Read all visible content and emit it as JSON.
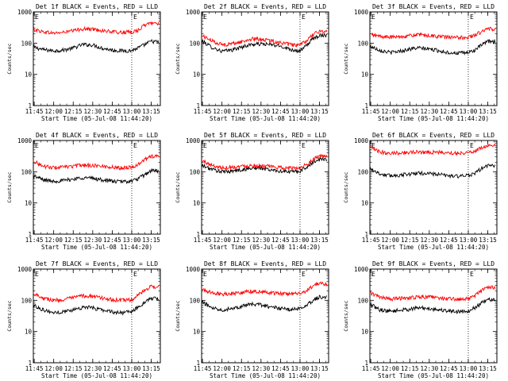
{
  "chart_data": [
    {
      "type": "line",
      "title": "Det 1f BLACK = Events, RED = LLD",
      "xlabel": "Start Time (05-Jul-08 11:44:20)",
      "ylabel": "Counts/sec",
      "x_ticks": [
        "11:45",
        "12:00",
        "12:15",
        "12:30",
        "12:45",
        "13:00",
        "13:15"
      ],
      "y_ticks": [
        "1",
        "10",
        "100",
        "1000"
      ],
      "y_scale": "log",
      "ylim": [
        1,
        1000
      ],
      "x_range": [
        "11:44:20",
        "13:22"
      ],
      "markers": [
        {
          "label": "E",
          "time": "11:44:20"
        },
        {
          "label": "E",
          "time": "13:00"
        }
      ],
      "series": [
        {
          "name": "BLACK = Events",
          "color": "#000000",
          "time": [
            "11:44:20",
            "11:52",
            "12:00",
            "12:07",
            "12:15",
            "12:22",
            "12:30",
            "12:37",
            "12:45",
            "12:52",
            "13:00",
            "13:05",
            "13:10",
            "13:15",
            "13:21"
          ],
          "values": [
            75,
            62,
            57,
            60,
            70,
            90,
            88,
            70,
            60,
            57,
            58,
            70,
            90,
            115,
            108
          ]
        },
        {
          "name": "RED = LLD",
          "color": "#ff0000",
          "time": [
            "11:44:20",
            "11:52",
            "12:00",
            "12:07",
            "12:15",
            "12:22",
            "12:30",
            "12:37",
            "12:45",
            "12:52",
            "13:00",
            "13:05",
            "13:10",
            "13:15",
            "13:21"
          ],
          "values": [
            280,
            230,
            210,
            220,
            250,
            290,
            280,
            255,
            230,
            220,
            225,
            260,
            380,
            450,
            430
          ]
        }
      ]
    },
    {
      "type": "line",
      "title": "Det 2f BLACK = Events, RED = LLD",
      "xlabel": "Start Time (05-Jul-08 11:44:20)",
      "ylabel": "Counts/sec",
      "x_ticks": [
        "11:45",
        "12:00",
        "12:15",
        "12:30",
        "12:45",
        "13:00",
        "13:15"
      ],
      "y_ticks": [
        "1",
        "10",
        "100",
        "1000"
      ],
      "y_scale": "log",
      "ylim": [
        1,
        1000
      ],
      "x_range": [
        "11:44:20",
        "13:22"
      ],
      "markers": [
        {
          "label": "E",
          "time": "11:44:20"
        },
        {
          "label": "E",
          "time": "13:00"
        }
      ],
      "series": [
        {
          "name": "BLACK = Events",
          "color": "#000000",
          "time": [
            "11:44:20",
            "11:52",
            "12:00",
            "12:07",
            "12:15",
            "12:22",
            "12:30",
            "12:37",
            "12:45",
            "12:52",
            "13:00",
            "13:05",
            "13:10",
            "13:15",
            "13:21"
          ],
          "values": [
            120,
            75,
            55,
            60,
            75,
            90,
            95,
            90,
            80,
            65,
            55,
            85,
            140,
            180,
            185
          ]
        },
        {
          "name": "RED = LLD",
          "color": "#ff0000",
          "time": [
            "11:44:20",
            "11:52",
            "12:00",
            "12:07",
            "12:15",
            "12:22",
            "12:30",
            "12:37",
            "12:45",
            "12:52",
            "13:00",
            "13:05",
            "13:10",
            "13:15",
            "13:21"
          ],
          "values": [
            180,
            120,
            90,
            95,
            110,
            135,
            135,
            120,
            105,
            90,
            85,
            120,
            190,
            240,
            240
          ]
        }
      ]
    },
    {
      "type": "line",
      "title": "Det 3f BLACK = Events, RED = LLD",
      "xlabel": "Start Time (05-Jul-08 11:44:20)",
      "ylabel": "Counts/sec",
      "x_ticks": [
        "11:45",
        "12:00",
        "12:15",
        "12:30",
        "12:45",
        "13:00",
        "13:15"
      ],
      "y_ticks": [
        "1",
        "10",
        "100",
        "1000"
      ],
      "y_scale": "log",
      "ylim": [
        1,
        1000
      ],
      "x_range": [
        "11:44:20",
        "13:22"
      ],
      "markers": [
        {
          "label": "E",
          "time": "11:44:20"
        },
        {
          "label": "E",
          "time": "13:00"
        }
      ],
      "series": [
        {
          "name": "BLACK = Events",
          "color": "#000000",
          "time": [
            "11:44:20",
            "11:52",
            "12:00",
            "12:07",
            "12:15",
            "12:22",
            "12:30",
            "12:37",
            "12:45",
            "12:52",
            "13:00",
            "13:05",
            "13:10",
            "13:15",
            "13:21"
          ],
          "values": [
            80,
            60,
            50,
            55,
            65,
            70,
            65,
            58,
            50,
            48,
            50,
            60,
            85,
            115,
            110
          ]
        },
        {
          "name": "RED = LLD",
          "color": "#ff0000",
          "time": [
            "11:44:20",
            "11:52",
            "12:00",
            "12:07",
            "12:15",
            "12:22",
            "12:30",
            "12:37",
            "12:45",
            "12:52",
            "13:00",
            "13:05",
            "13:10",
            "13:15",
            "13:21"
          ],
          "values": [
            190,
            165,
            155,
            160,
            175,
            185,
            175,
            165,
            155,
            150,
            155,
            180,
            230,
            290,
            280
          ]
        }
      ]
    },
    {
      "type": "line",
      "title": "Det 4f BLACK = Events, RED = LLD",
      "xlabel": "Start Time (05-Jul-08 11:44:20)",
      "ylabel": "Counts/sec",
      "x_ticks": [
        "11:45",
        "12:00",
        "12:15",
        "12:30",
        "12:45",
        "13:00",
        "13:15"
      ],
      "y_ticks": [
        "1",
        "10",
        "100",
        "1000"
      ],
      "y_scale": "log",
      "ylim": [
        1,
        1000
      ],
      "x_range": [
        "11:44:20",
        "13:22"
      ],
      "markers": [
        {
          "label": "E",
          "time": "11:44:20"
        },
        {
          "label": "E",
          "time": "13:00"
        }
      ],
      "series": [
        {
          "name": "BLACK = Events",
          "color": "#000000",
          "time": [
            "11:44:20",
            "11:52",
            "12:00",
            "12:07",
            "12:15",
            "12:22",
            "12:30",
            "12:37",
            "12:45",
            "12:52",
            "13:00",
            "13:05",
            "13:10",
            "13:15",
            "13:21"
          ],
          "values": [
            75,
            55,
            50,
            52,
            58,
            65,
            62,
            55,
            50,
            48,
            50,
            60,
            80,
            110,
            105
          ]
        },
        {
          "name": "RED = LLD",
          "color": "#ff0000",
          "time": [
            "11:44:20",
            "11:52",
            "12:00",
            "12:07",
            "12:15",
            "12:22",
            "12:30",
            "12:37",
            "12:45",
            "12:52",
            "13:00",
            "13:05",
            "13:10",
            "13:15",
            "13:21"
          ],
          "values": [
            220,
            150,
            135,
            140,
            150,
            165,
            160,
            150,
            140,
            135,
            140,
            175,
            240,
            320,
            300
          ]
        }
      ]
    },
    {
      "type": "line",
      "title": "Det 5f BLACK = Events, RED = LLD",
      "xlabel": "Start Time (05-Jul-08 11:44:20)",
      "ylabel": "Counts/sec",
      "x_ticks": [
        "11:45",
        "12:00",
        "12:15",
        "12:30",
        "12:45",
        "13:00",
        "13:15"
      ],
      "y_ticks": [
        "1",
        "10",
        "100",
        "1000"
      ],
      "y_scale": "log",
      "ylim": [
        1,
        1000
      ],
      "x_range": [
        "11:44:20",
        "13:22"
      ],
      "markers": [
        {
          "label": "E",
          "time": "11:44:20"
        },
        {
          "label": "E",
          "time": "13:00"
        }
      ],
      "series": [
        {
          "name": "BLACK = Events",
          "color": "#000000",
          "time": [
            "11:44:20",
            "11:52",
            "12:00",
            "12:07",
            "12:15",
            "12:22",
            "12:30",
            "12:37",
            "12:45",
            "12:52",
            "13:00",
            "13:05",
            "13:10",
            "13:15",
            "13:21"
          ],
          "values": [
            160,
            120,
            100,
            105,
            115,
            130,
            130,
            115,
            105,
            100,
            105,
            140,
            200,
            260,
            250
          ]
        },
        {
          "name": "RED = LLD",
          "color": "#ff0000",
          "time": [
            "11:44:20",
            "11:52",
            "12:00",
            "12:07",
            "12:15",
            "12:22",
            "12:30",
            "12:37",
            "12:45",
            "12:52",
            "13:00",
            "13:05",
            "13:10",
            "13:15",
            "13:21"
          ],
          "values": [
            230,
            160,
            135,
            140,
            150,
            160,
            155,
            145,
            135,
            130,
            135,
            175,
            250,
            320,
            310
          ]
        }
      ]
    },
    {
      "type": "line",
      "title": "Det 6f BLACK = Events, RED = LLD",
      "xlabel": "Start Time (05-Jul-08 11:44:20)",
      "ylabel": "Counts/sec",
      "x_ticks": [
        "11:45",
        "12:00",
        "12:15",
        "12:30",
        "12:45",
        "13:00",
        "13:15"
      ],
      "y_ticks": [
        "1",
        "10",
        "100",
        "1000"
      ],
      "y_scale": "log",
      "ylim": [
        1,
        1000
      ],
      "x_range": [
        "11:44:20",
        "13:22"
      ],
      "markers": [
        {
          "label": "E",
          "time": "11:44:20"
        },
        {
          "label": "E",
          "time": "13:00"
        }
      ],
      "series": [
        {
          "name": "BLACK = Events",
          "color": "#000000",
          "time": [
            "11:44:20",
            "11:52",
            "12:00",
            "12:07",
            "12:15",
            "12:22",
            "12:30",
            "12:37",
            "12:45",
            "12:52",
            "13:00",
            "13:05",
            "13:10",
            "13:15",
            "13:21"
          ],
          "values": [
            130,
            85,
            75,
            78,
            85,
            90,
            88,
            82,
            75,
            72,
            75,
            90,
            125,
            160,
            150
          ]
        },
        {
          "name": "RED = LLD",
          "color": "#ff0000",
          "time": [
            "11:44:20",
            "11:52",
            "12:00",
            "12:07",
            "12:15",
            "12:22",
            "12:30",
            "12:37",
            "12:45",
            "12:52",
            "13:00",
            "13:05",
            "13:10",
            "13:15",
            "13:21"
          ],
          "values": [
            600,
            430,
            400,
            405,
            420,
            430,
            425,
            415,
            405,
            400,
            410,
            460,
            580,
            690,
            660
          ]
        }
      ]
    },
    {
      "type": "line",
      "title": "Det 7f BLACK = Events, RED = LLD",
      "xlabel": "Start Time (05-Jul-08 11:44:20)",
      "ylabel": "Counts/sec",
      "x_ticks": [
        "11:45",
        "12:00",
        "12:15",
        "12:30",
        "12:45",
        "13:00",
        "13:15"
      ],
      "y_ticks": [
        "1",
        "10",
        "100",
        "1000"
      ],
      "y_scale": "log",
      "ylim": [
        1,
        1000
      ],
      "x_range": [
        "11:44:20",
        "13:22"
      ],
      "markers": [
        {
          "label": "E",
          "time": "11:44:20"
        },
        {
          "label": "E",
          "time": "13:00"
        }
      ],
      "series": [
        {
          "name": "BLACK = Events",
          "color": "#000000",
          "time": [
            "11:44:20",
            "11:52",
            "12:00",
            "12:07",
            "12:15",
            "12:22",
            "12:30",
            "12:37",
            "12:45",
            "12:52",
            "13:00",
            "13:05",
            "13:10",
            "13:15",
            "13:21"
          ],
          "values": [
            70,
            50,
            40,
            43,
            50,
            60,
            58,
            50,
            43,
            40,
            43,
            60,
            90,
            115,
            110
          ]
        },
        {
          "name": "RED = LLD",
          "color": "#ff0000",
          "time": [
            "11:44:20",
            "11:52",
            "12:00",
            "12:07",
            "12:15",
            "12:22",
            "12:30",
            "12:37",
            "12:45",
            "12:52",
            "13:00",
            "13:05",
            "13:10",
            "13:15",
            "13:21"
          ],
          "values": [
            170,
            120,
            100,
            105,
            120,
            140,
            135,
            120,
            105,
            100,
            105,
            145,
            210,
            280,
            270
          ]
        }
      ]
    },
    {
      "type": "line",
      "title": "Det 8f BLACK = Events, RED = LLD",
      "xlabel": "Start Time (05-Jul-08 11:44:20)",
      "ylabel": "Counts/sec",
      "x_ticks": [
        "11:45",
        "12:00",
        "12:15",
        "12:30",
        "12:45",
        "13:00",
        "13:15"
      ],
      "y_ticks": [
        "1",
        "10",
        "100",
        "1000"
      ],
      "y_scale": "log",
      "ylim": [
        1,
        1000
      ],
      "x_range": [
        "11:44:20",
        "13:22"
      ],
      "markers": [
        {
          "label": "E",
          "time": "11:44:20"
        },
        {
          "label": "E",
          "time": "13:00"
        }
      ],
      "series": [
        {
          "name": "BLACK = Events",
          "color": "#000000",
          "time": [
            "11:44:20",
            "11:52",
            "12:00",
            "12:07",
            "12:15",
            "12:22",
            "12:30",
            "12:37",
            "12:45",
            "12:52",
            "13:00",
            "13:05",
            "13:10",
            "13:15",
            "13:21"
          ],
          "values": [
            90,
            60,
            50,
            55,
            65,
            75,
            72,
            62,
            55,
            50,
            55,
            72,
            100,
            130,
            125
          ]
        },
        {
          "name": "RED = LLD",
          "color": "#ff0000",
          "time": [
            "11:44:20",
            "11:52",
            "12:00",
            "12:07",
            "12:15",
            "12:22",
            "12:30",
            "12:37",
            "12:45",
            "12:52",
            "13:00",
            "13:05",
            "13:10",
            "13:15",
            "13:21"
          ],
          "values": [
            230,
            175,
            160,
            165,
            180,
            195,
            190,
            175,
            165,
            160,
            165,
            205,
            280,
            350,
            330
          ]
        }
      ]
    },
    {
      "type": "line",
      "title": "Det 9f BLACK = Events, RED = LLD",
      "xlabel": "Start Time (05-Jul-08 11:44:20)",
      "ylabel": "Counts/sec",
      "x_ticks": [
        "11:45",
        "12:00",
        "12:15",
        "12:30",
        "12:45",
        "13:00",
        "13:15"
      ],
      "y_ticks": [
        "1",
        "10",
        "100",
        "1000"
      ],
      "y_scale": "log",
      "ylim": [
        1,
        1000
      ],
      "x_range": [
        "11:44:20",
        "13:22"
      ],
      "markers": [
        {
          "label": "E",
          "time": "11:44:20"
        },
        {
          "label": "E",
          "time": "13:00"
        }
      ],
      "series": [
        {
          "name": "BLACK = Events",
          "color": "#000000",
          "time": [
            "11:44:20",
            "11:52",
            "12:00",
            "12:07",
            "12:15",
            "12:22",
            "12:30",
            "12:37",
            "12:45",
            "12:52",
            "13:00",
            "13:05",
            "13:10",
            "13:15",
            "13:21"
          ],
          "values": [
            75,
            50,
            45,
            48,
            52,
            58,
            55,
            50,
            46,
            44,
            46,
            58,
            80,
            105,
            100
          ]
        },
        {
          "name": "RED = LLD",
          "color": "#ff0000",
          "time": [
            "11:44:20",
            "11:52",
            "12:00",
            "12:07",
            "12:15",
            "12:22",
            "12:30",
            "12:37",
            "12:45",
            "12:52",
            "13:00",
            "13:05",
            "13:10",
            "13:15",
            "13:21"
          ],
          "values": [
            180,
            125,
            110,
            115,
            120,
            130,
            128,
            120,
            112,
            108,
            112,
            140,
            200,
            270,
            260
          ]
        }
      ]
    }
  ]
}
